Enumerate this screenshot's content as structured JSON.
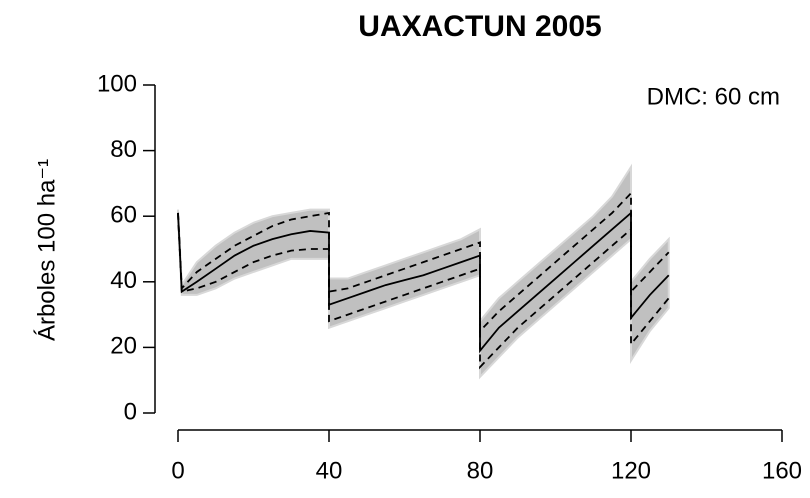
{
  "chart_data": {
    "type": "line",
    "title": "UAXACTUN 2005",
    "ylabel": "Árboles 100 ha⁻¹",
    "annotation": "DMC: 60 cm",
    "x": [
      0,
      1,
      5,
      10,
      15,
      20,
      25,
      30,
      35,
      40,
      40,
      45,
      50,
      55,
      60,
      65,
      70,
      75,
      80,
      80,
      85,
      90,
      95,
      100,
      105,
      110,
      115,
      120,
      120,
      125,
      130
    ],
    "band": {
      "color": "#c0c0c0",
      "upper": [
        62,
        39,
        46,
        51,
        55,
        58,
        60,
        61,
        62,
        62,
        41,
        41,
        43,
        45,
        47,
        49,
        51,
        53,
        56,
        28,
        35,
        40,
        45,
        50,
        55,
        60,
        66,
        75,
        40,
        47,
        53
      ],
      "lower": [
        60,
        36,
        36,
        38,
        41,
        43,
        45,
        47,
        47,
        47,
        26,
        28,
        30,
        32,
        34,
        36,
        38,
        40,
        42,
        11,
        17,
        23,
        28,
        33,
        38,
        43,
        48,
        53,
        16,
        25,
        32
      ]
    },
    "series": [
      {
        "color": "#000000",
        "dash": false,
        "values": [
          61,
          37,
          40,
          44,
          48,
          51,
          53,
          54.5,
          55.5,
          55,
          33,
          35,
          37,
          39,
          40.5,
          42,
          44,
          46,
          48,
          19,
          26,
          31,
          36,
          41,
          46,
          51,
          56,
          61,
          29,
          36,
          42
        ]
      },
      {
        "color": "#000000",
        "dash": true,
        "values": [
          61,
          38,
          43,
          47,
          51,
          54,
          57,
          59,
          60,
          61,
          37,
          38,
          40,
          42,
          44,
          46,
          48,
          50,
          52,
          25,
          31,
          36,
          41,
          46,
          51,
          56,
          61,
          67,
          37,
          43,
          49
        ]
      },
      {
        "color": "#000000",
        "dash": true,
        "values": [
          61,
          37,
          38,
          40,
          43,
          46,
          48,
          49.5,
          50,
          50,
          28,
          30,
          32,
          34,
          36,
          38,
          40,
          42,
          44,
          14,
          20,
          26,
          31,
          36,
          41,
          46,
          51,
          56,
          21,
          28,
          35
        ]
      }
    ],
    "xlim": [
      0,
      160
    ],
    "xticks": [
      0,
      40,
      80,
      120,
      160
    ],
    "ylim": [
      0,
      100
    ],
    "yticks": [
      0,
      20,
      40,
      60,
      80,
      100
    ]
  }
}
